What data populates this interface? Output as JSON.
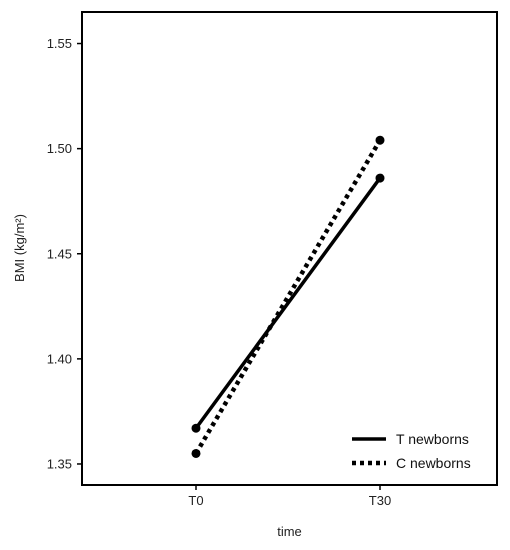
{
  "chart_data": {
    "type": "line",
    "categories": [
      "T0",
      "T30"
    ],
    "xlabel": "time",
    "ylabel": "BMI (kg/m²)",
    "ylim": [
      1.34,
      1.565
    ],
    "yticks": [
      "1.35",
      "1.40",
      "1.45",
      "1.50",
      "1.55"
    ],
    "grid": false,
    "legend_position": "bottom-right",
    "series": [
      {
        "name": "T  newborns",
        "values": [
          1.367,
          1.486
        ],
        "dash": "solid",
        "color": "#000000"
      },
      {
        "name": "C  newborns",
        "values": [
          1.355,
          1.504
        ],
        "dash": "dotted",
        "color": "#000000"
      }
    ]
  }
}
